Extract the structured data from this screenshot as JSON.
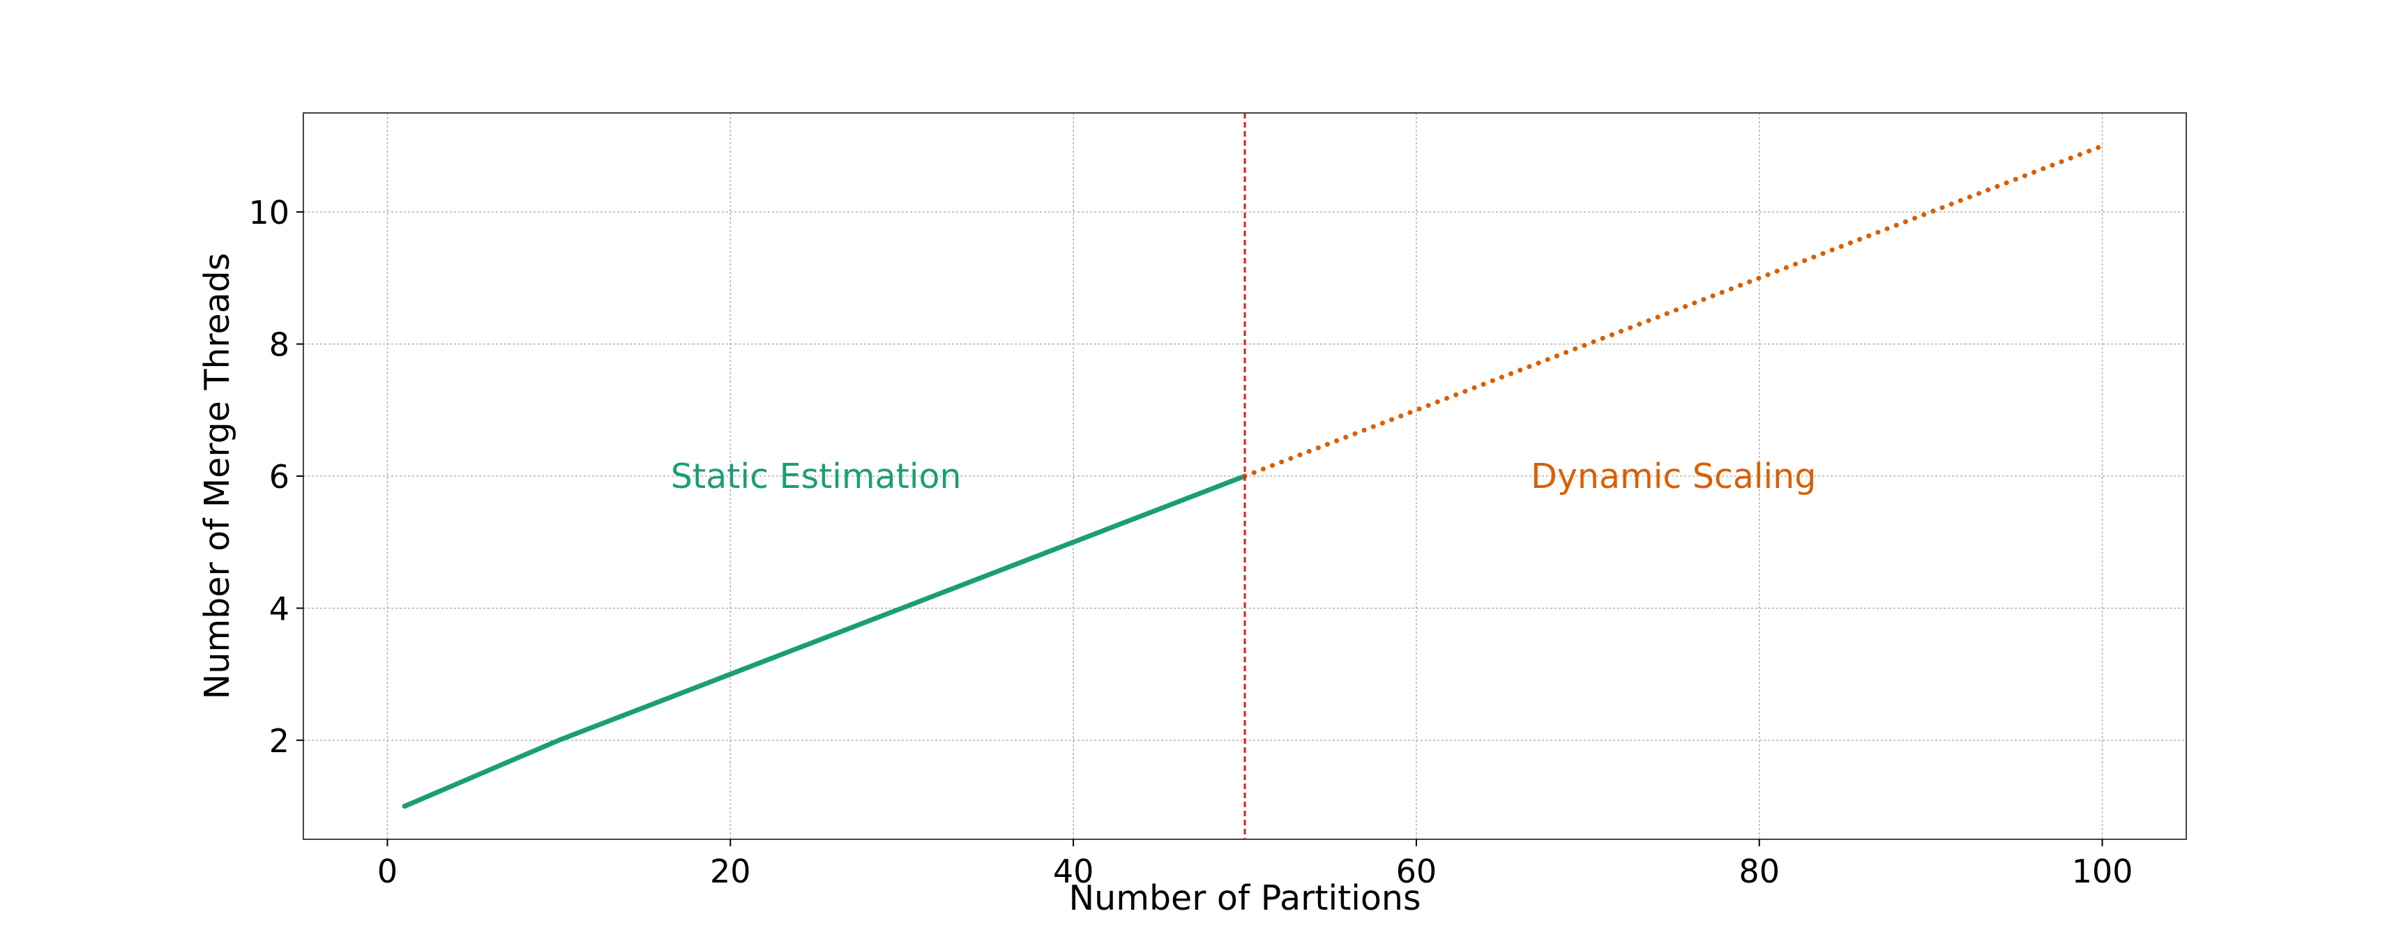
{
  "chart_data": {
    "type": "line",
    "title": "",
    "xlabel": "Number of Partitions",
    "ylabel": "Number of Merge Threads",
    "xlim": [
      -4.9,
      104.9
    ],
    "ylim": [
      0.5,
      11.5
    ],
    "xticks": [
      0,
      20,
      40,
      60,
      80,
      100
    ],
    "xtick_labels": [
      "0",
      "20",
      "40",
      "60",
      "80",
      "100"
    ],
    "yticks": [
      2,
      4,
      6,
      8,
      10
    ],
    "ytick_labels": [
      "2",
      "4",
      "6",
      "8",
      "10"
    ],
    "grid": true,
    "series": [
      {
        "style": "solid",
        "color": "#1b9e77",
        "x": [
          1,
          10,
          20,
          30,
          40,
          50
        ],
        "y": [
          1,
          2,
          3,
          4,
          5,
          6
        ]
      },
      {
        "style": "dotted",
        "color": "#d95f02",
        "x": [
          50,
          60,
          70,
          80,
          90,
          100
        ],
        "y": [
          6,
          7,
          8,
          9,
          10,
          11
        ]
      }
    ],
    "threshold": {
      "x": 50,
      "color": "#e41a1c",
      "style": "dashed"
    },
    "annotations": [
      {
        "text": "Static Estimation",
        "x": 25,
        "y": 6,
        "color": "#1b9e77"
      },
      {
        "text": "Dynamic Scaling",
        "x": 75,
        "y": 6,
        "color": "#d95f02"
      }
    ]
  }
}
